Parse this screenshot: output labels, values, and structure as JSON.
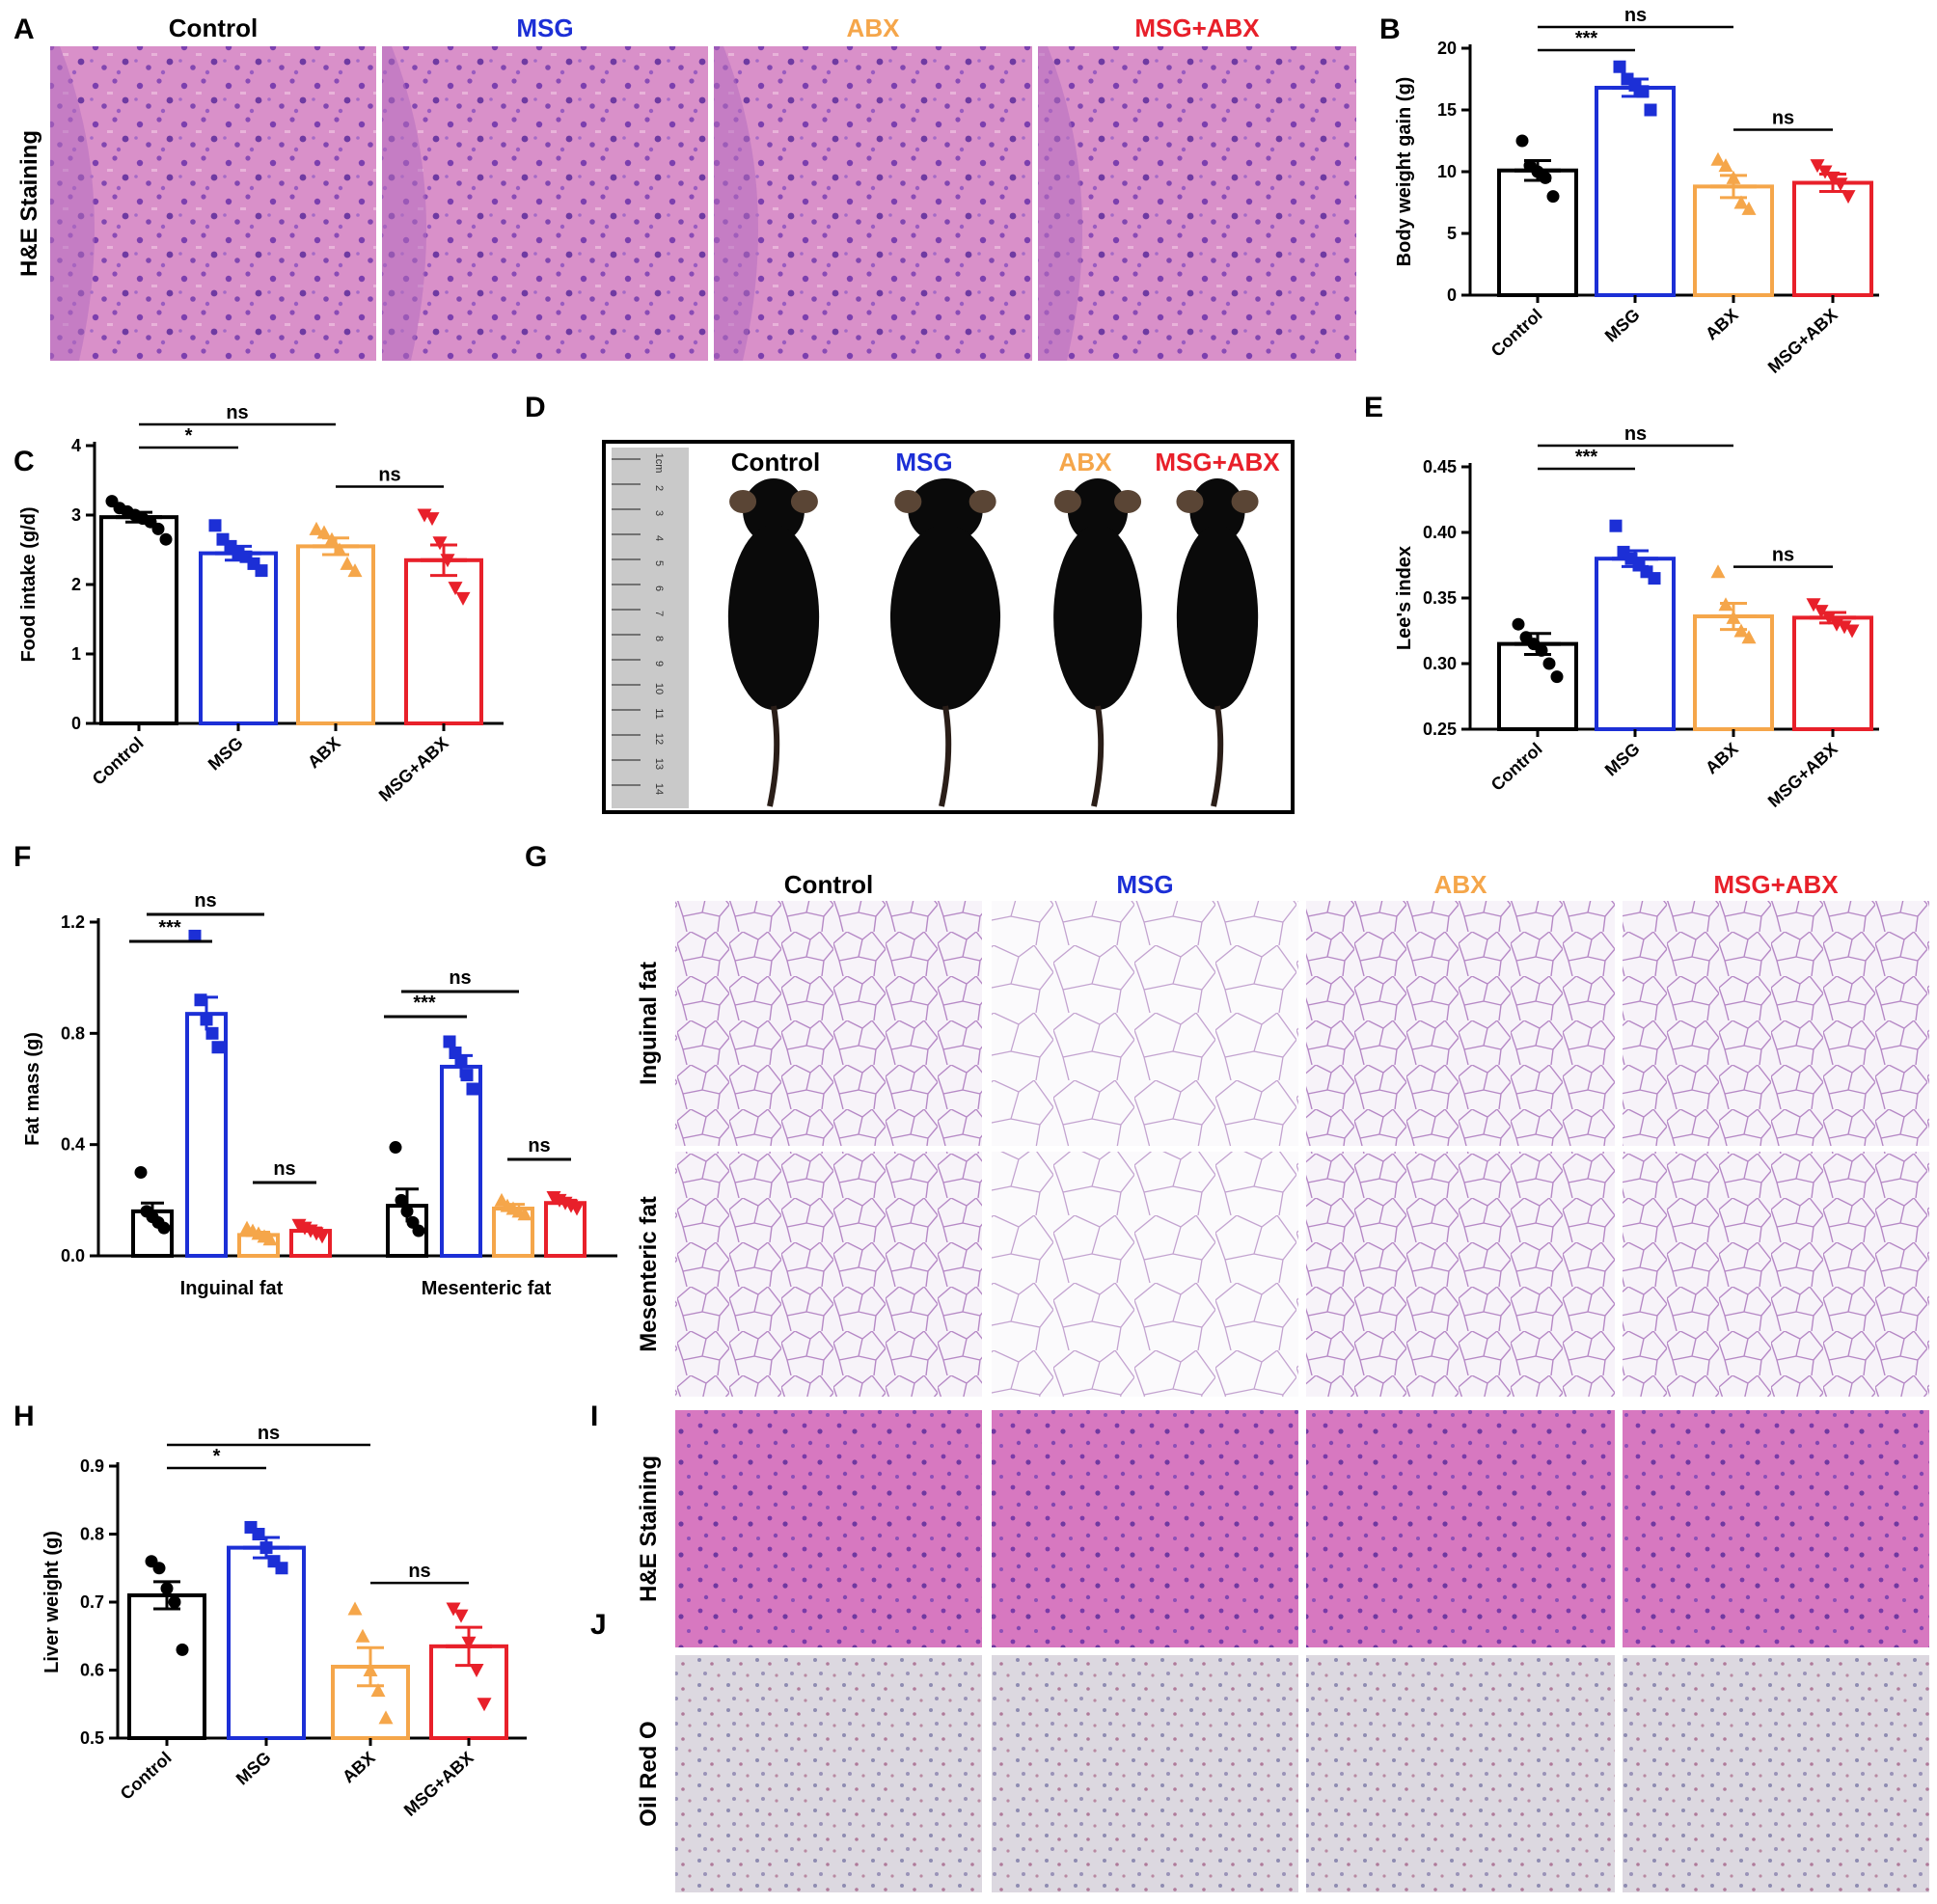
{
  "colors": {
    "Control": "#000000",
    "MSG": "#1c2fd6",
    "ABX": "#f5a64a",
    "MSG+ABX": "#e8202a",
    "he_stain": "#d88fc8",
    "adipose": "#f3edf6",
    "oil_red": "#cfc6d2"
  },
  "panel_letters": [
    "A",
    "B",
    "C",
    "D",
    "E",
    "F",
    "G",
    "H",
    "I",
    "J"
  ],
  "groups": [
    "Control",
    "MSG",
    "ABX",
    "MSG+ABX"
  ],
  "panelA": {
    "row_label": "H&E Staining"
  },
  "panelD": {
    "ruler_marks": [
      "1cm",
      "2",
      "3",
      "4",
      "5",
      "6",
      "7",
      "8",
      "9",
      "10",
      "11",
      "12",
      "13",
      "14"
    ]
  },
  "panelG": {
    "rows": [
      "Inguinal fat",
      "Mesenteric fat"
    ]
  },
  "panelI": {
    "row_label": "H&E Staining"
  },
  "panelJ": {
    "row_label": "Oil Red O"
  },
  "chart_data": [
    {
      "id": "B",
      "type": "bar",
      "categories": [
        "Control",
        "MSG",
        "ABX",
        "MSG+ABX"
      ],
      "values": [
        10.1,
        16.8,
        8.8,
        9.1
      ],
      "errors": [
        0.8,
        0.7,
        0.9,
        0.7
      ],
      "points": [
        [
          12.5,
          10.5,
          10,
          9.5,
          8
        ],
        [
          18.5,
          17.5,
          17,
          16.5,
          15
        ],
        [
          11,
          10.5,
          9.5,
          7.5,
          7
        ],
        [
          10.5,
          10,
          9.5,
          9,
          8
        ]
      ],
      "ylabel": "Body weight gain (g)",
      "ylim": [
        0,
        20
      ],
      "yticks": [
        0,
        5,
        10,
        15,
        20
      ],
      "ytick_labels": [
        "0",
        "5",
        "10",
        "15",
        "20"
      ],
      "significance": [
        {
          "from": 0,
          "to": 1,
          "label": "***"
        },
        {
          "from": 0,
          "to": 2,
          "label": "ns"
        },
        {
          "from": 2,
          "to": 3,
          "label": "ns"
        }
      ]
    },
    {
      "id": "C",
      "type": "bar",
      "categories": [
        "Control",
        "MSG",
        "ABX",
        "MSG+ABX"
      ],
      "values": [
        2.97,
        2.45,
        2.55,
        2.35
      ],
      "errors": [
        0.07,
        0.1,
        0.12,
        0.22
      ],
      "points": [
        [
          3.2,
          3.1,
          3.05,
          3.0,
          2.95,
          2.9,
          2.8,
          2.65
        ],
        [
          2.85,
          2.65,
          2.55,
          2.45,
          2.4,
          2.3,
          2.2
        ],
        [
          2.8,
          2.75,
          2.65,
          2.5,
          2.3,
          2.2
        ],
        [
          3.0,
          2.95,
          2.6,
          2.35,
          1.95,
          1.8
        ]
      ],
      "ylabel": "Food intake (g/d)",
      "ylim": [
        0,
        4
      ],
      "yticks": [
        0,
        1,
        2,
        3,
        4
      ],
      "ytick_labels": [
        "0",
        "1",
        "2",
        "3",
        "4"
      ],
      "significance": [
        {
          "from": 0,
          "to": 1,
          "label": "*"
        },
        {
          "from": 0,
          "to": 2,
          "label": "ns"
        },
        {
          "from": 2,
          "to": 3,
          "label": "ns"
        }
      ]
    },
    {
      "id": "E",
      "type": "bar",
      "categories": [
        "Control",
        "MSG",
        "ABX",
        "MSG+ABX"
      ],
      "values": [
        0.315,
        0.38,
        0.336,
        0.335
      ],
      "errors": [
        0.008,
        0.006,
        0.01,
        0.004
      ],
      "points": [
        [
          0.33,
          0.32,
          0.315,
          0.31,
          0.3,
          0.29
        ],
        [
          0.405,
          0.385,
          0.38,
          0.375,
          0.37,
          0.365
        ],
        [
          0.37,
          0.345,
          0.335,
          0.325,
          0.32
        ],
        [
          0.345,
          0.34,
          0.335,
          0.33,
          0.328,
          0.325
        ]
      ],
      "ylabel": "Lee's index",
      "ylim": [
        0.25,
        0.45
      ],
      "yticks": [
        0.25,
        0.3,
        0.35,
        0.4,
        0.45
      ],
      "ytick_labels": [
        "0.25",
        "0.30",
        "0.35",
        "0.40",
        "0.45"
      ],
      "significance": [
        {
          "from": 0,
          "to": 1,
          "label": "***"
        },
        {
          "from": 0,
          "to": 2,
          "label": "ns"
        },
        {
          "from": 2,
          "to": 3,
          "label": "ns"
        }
      ]
    },
    {
      "id": "F",
      "type": "bar",
      "categories": [
        "Inguinal fat",
        "Mesenteric fat"
      ],
      "series": [
        {
          "group": "Control",
          "values": [
            0.16,
            0.18
          ],
          "errors": [
            0.03,
            0.06
          ],
          "points": [
            [
              0.3,
              0.16,
              0.14,
              0.12,
              0.1
            ],
            [
              0.39,
              0.2,
              0.16,
              0.12,
              0.09
            ]
          ]
        },
        {
          "group": "MSG",
          "values": [
            0.87,
            0.68
          ],
          "errors": [
            0.06,
            0.04
          ],
          "points": [
            [
              1.15,
              0.92,
              0.85,
              0.8,
              0.75
            ],
            [
              0.77,
              0.73,
              0.7,
              0.65,
              0.6
            ]
          ]
        },
        {
          "group": "ABX",
          "values": [
            0.075,
            0.17
          ],
          "errors": [
            0.01,
            0.015
          ],
          "points": [
            [
              0.1,
              0.09,
              0.08,
              0.07,
              0.06
            ],
            [
              0.2,
              0.18,
              0.17,
              0.16,
              0.15
            ]
          ]
        },
        {
          "group": "MSG+ABX",
          "values": [
            0.09,
            0.19
          ],
          "errors": [
            0.01,
            0.01
          ],
          "points": [
            [
              0.11,
              0.1,
              0.09,
              0.08,
              0.07
            ],
            [
              0.21,
              0.2,
              0.19,
              0.18,
              0.17
            ]
          ]
        }
      ],
      "ylabel": "Fat mass (g)",
      "ylim": [
        0,
        1.2
      ],
      "yticks": [
        0,
        0.4,
        0.8,
        1.2
      ],
      "ytick_labels": [
        "0.0",
        "0.4",
        "0.8",
        "1.2"
      ],
      "significance": [
        {
          "cat": 0,
          "from": 0,
          "to": 1,
          "label": "***"
        },
        {
          "cat": 0,
          "from": 0,
          "to": 2,
          "label": "ns"
        },
        {
          "cat": 0,
          "from": 2,
          "to": 3,
          "label": "ns"
        },
        {
          "cat": 1,
          "from": 0,
          "to": 1,
          "label": "***"
        },
        {
          "cat": 1,
          "from": 0,
          "to": 2,
          "label": "ns"
        },
        {
          "cat": 1,
          "from": 2,
          "to": 3,
          "label": "ns"
        }
      ]
    },
    {
      "id": "H",
      "type": "bar",
      "categories": [
        "Control",
        "MSG",
        "ABX",
        "MSG+ABX"
      ],
      "values": [
        0.71,
        0.78,
        0.605,
        0.635
      ],
      "errors": [
        0.02,
        0.015,
        0.028,
        0.028
      ],
      "points": [
        [
          0.76,
          0.75,
          0.72,
          0.7,
          0.63
        ],
        [
          0.81,
          0.8,
          0.78,
          0.76,
          0.75
        ],
        [
          0.69,
          0.65,
          0.6,
          0.57,
          0.53
        ],
        [
          0.69,
          0.68,
          0.64,
          0.6,
          0.55
        ]
      ],
      "ylabel": "Liver weight (g)",
      "ylim": [
        0.5,
        0.9
      ],
      "yticks": [
        0.5,
        0.6,
        0.7,
        0.8,
        0.9
      ],
      "ytick_labels": [
        "0.5",
        "0.6",
        "0.7",
        "0.8",
        "0.9"
      ],
      "significance": [
        {
          "from": 0,
          "to": 1,
          "label": "*"
        },
        {
          "from": 0,
          "to": 2,
          "label": "ns"
        },
        {
          "from": 2,
          "to": 3,
          "label": "ns"
        }
      ]
    }
  ]
}
